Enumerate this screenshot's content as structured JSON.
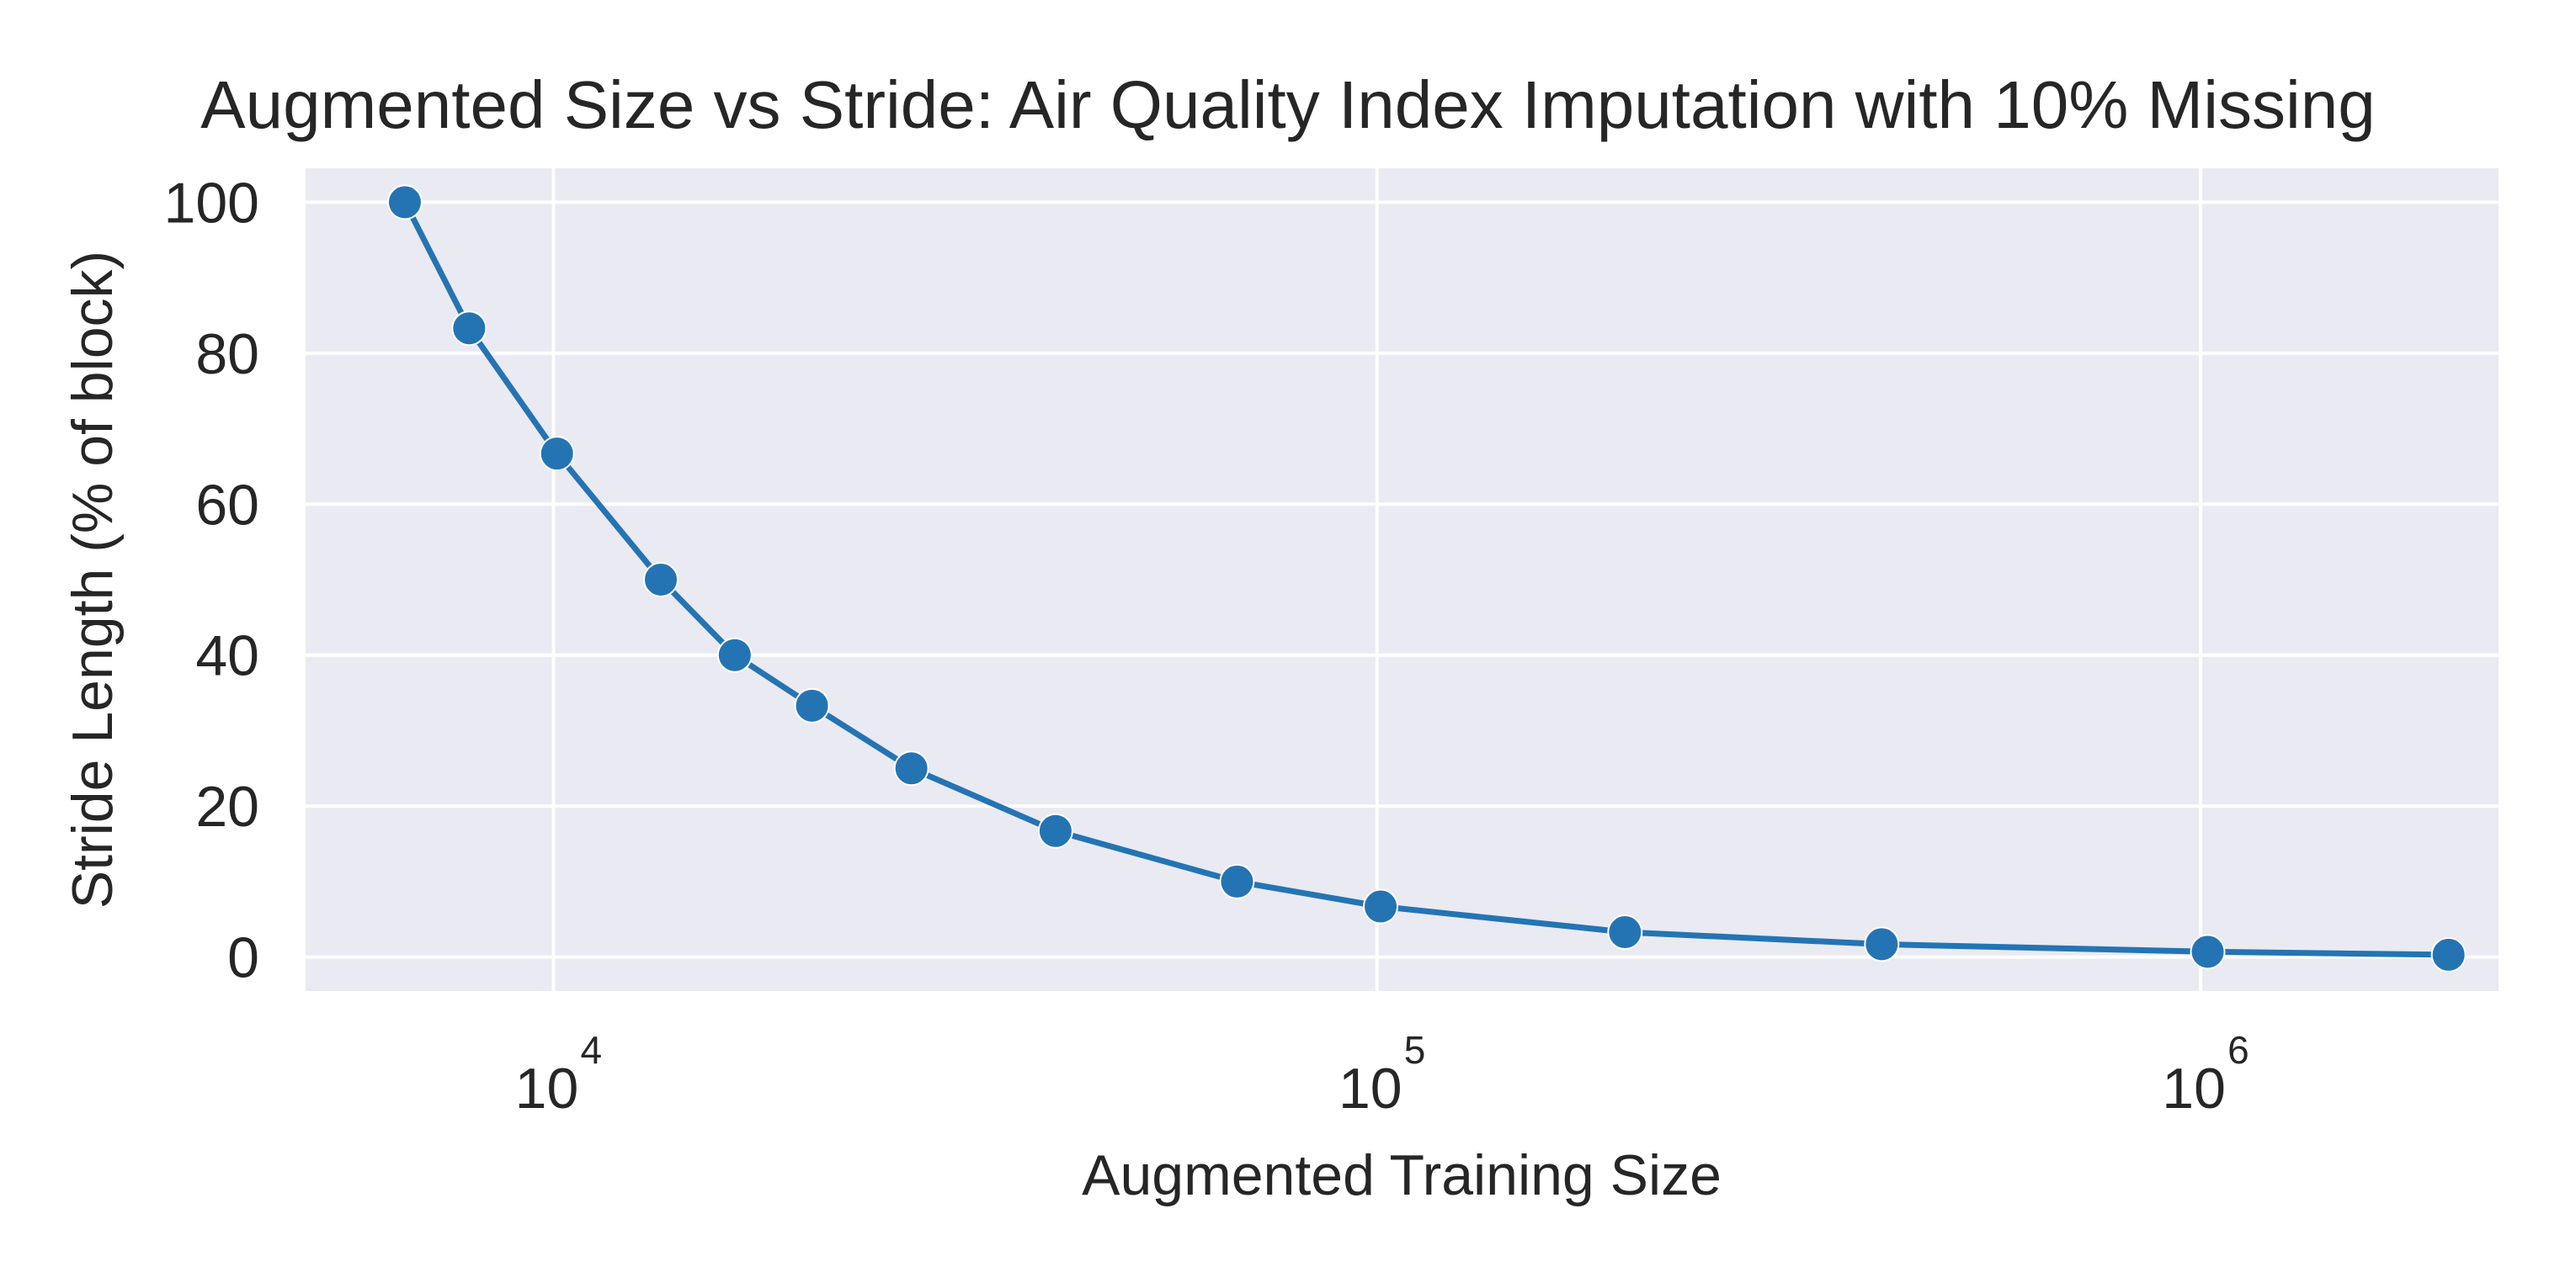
{
  "chart_data": {
    "type": "line",
    "title": "Augmented Size vs Stride: Air Quality Index Imputation with 10% Missing",
    "xlabel": "Augmented Training Size",
    "ylabel": "Stride Length (% of block)",
    "xscale": "log",
    "xlim": [
      5000,
      2300000
    ],
    "ylim": [
      -4.5,
      104.5
    ],
    "xticks": [
      {
        "value": 10000,
        "base": "10",
        "exp": "4"
      },
      {
        "value": 100000,
        "base": "10",
        "exp": "5"
      },
      {
        "value": 1000000,
        "base": "10",
        "exp": "6"
      }
    ],
    "yticks": [
      {
        "value": 0,
        "label": "0"
      },
      {
        "value": 20,
        "label": "20"
      },
      {
        "value": 40,
        "label": "40"
      },
      {
        "value": 60,
        "label": "60"
      },
      {
        "value": 80,
        "label": "80"
      },
      {
        "value": 100,
        "label": "100"
      }
    ],
    "grid": true,
    "series": [
      {
        "color": "#2474b4",
        "marker": "circle",
        "x": [
          6600,
          7900,
          10100,
          13500,
          16600,
          20600,
          27200,
          40700,
          67600,
          101000,
          200000,
          410000,
          1020000,
          2000000
        ],
        "y": [
          100,
          83.3,
          66.7,
          50,
          40,
          33.3,
          25,
          16.7,
          10,
          6.7,
          3.3,
          1.7,
          0.7,
          0.3
        ]
      }
    ]
  }
}
